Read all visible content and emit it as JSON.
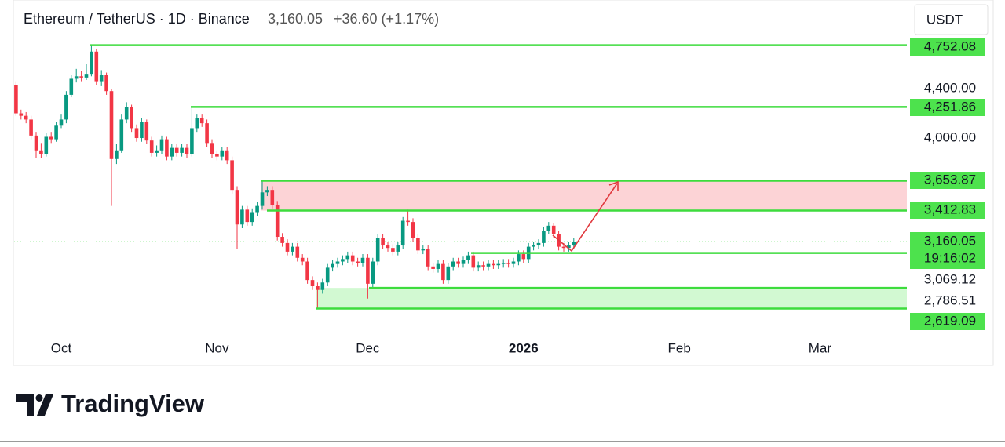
{
  "header": {
    "title": "Ethereum / TetherUS · 1D · Binance",
    "price": {
      "value": 3160.05,
      "label": "3,160.05"
    },
    "change": "+36.60 (+1.17%)",
    "currency": "USDT",
    "countdown": "19:16:02"
  },
  "brand": "TradingView",
  "chart_data": {
    "type": "candlestick",
    "up_color": "#089981",
    "down_color": "#f23645",
    "level_color": "#3ddc3d",
    "ylim": [
      2165,
      4813
    ],
    "yticks": [
      {
        "value": 4400,
        "label": "4,400.00"
      },
      {
        "value": 4000,
        "label": "4,000.00"
      }
    ],
    "levels": [
      {
        "value": 4752.08,
        "label": "4,752.08"
      },
      {
        "value": 4251.86,
        "label": "4,251.86"
      },
      {
        "value": 3653.87,
        "label": "3,653.87"
      },
      {
        "value": 3412.83,
        "label": "3,412.83"
      },
      {
        "value": 3069.12,
        "label": "3,069.12"
      },
      {
        "value": 2786.51,
        "label": "2,786.51"
      },
      {
        "value": 2619.09,
        "label": "2,619.09"
      }
    ],
    "categories": [
      null,
      null,
      null,
      null,
      null,
      null,
      null,
      null,
      null,
      "Oct",
      null,
      null,
      null,
      null,
      null,
      null,
      null,
      null,
      null,
      null,
      null,
      null,
      null,
      null,
      null,
      null,
      null,
      null,
      null,
      null,
      null,
      null,
      null,
      null,
      null,
      null,
      null,
      null,
      null,
      null,
      "Nov",
      null,
      null,
      null,
      null,
      null,
      null,
      null,
      null,
      null,
      null,
      null,
      null,
      null,
      null,
      null,
      null,
      null,
      null,
      null,
      null,
      null,
      null,
      null,
      null,
      null,
      null,
      null,
      null,
      null,
      "Dec",
      null,
      null,
      null,
      null,
      null,
      null,
      null,
      null,
      null,
      null,
      null,
      null,
      null,
      null,
      null,
      null,
      null,
      null,
      null,
      null,
      null,
      null,
      null,
      null,
      null,
      null,
      null,
      null,
      null,
      null,
      "2026",
      null,
      null,
      null,
      null,
      null,
      null,
      null,
      null,
      null,
      null,
      null,
      null,
      null,
      null,
      null,
      null,
      null,
      null,
      null,
      null,
      null,
      null,
      null,
      null,
      null,
      null,
      null,
      null,
      null,
      null,
      "Feb",
      null,
      null,
      null,
      null,
      null,
      null,
      null,
      null,
      null,
      null,
      null,
      null,
      null,
      null,
      null,
      null,
      null,
      null,
      null,
      null,
      null,
      null,
      null,
      null,
      null,
      null,
      null,
      "Mar",
      null,
      null,
      null,
      null,
      null,
      null,
      null,
      null,
      null,
      null,
      null
    ],
    "ohlc": [
      [
        4430,
        4460,
        4180,
        4200
      ],
      [
        4200,
        4230,
        4150,
        4180
      ],
      [
        4180,
        4210,
        4120,
        4150
      ],
      [
        4150,
        4180,
        3990,
        4020
      ],
      [
        4020,
        4050,
        3840,
        3900
      ],
      [
        3900,
        3960,
        3840,
        3870
      ],
      [
        3870,
        4040,
        3850,
        4010
      ],
      [
        4010,
        4050,
        3960,
        3990
      ],
      [
        3990,
        4130,
        3970,
        4100
      ],
      [
        4100,
        4190,
        4080,
        4150
      ],
      [
        4150,
        4380,
        4120,
        4350
      ],
      [
        4350,
        4510,
        4330,
        4480
      ],
      [
        4480,
        4560,
        4450,
        4500
      ],
      [
        4500,
        4540,
        4460,
        4490
      ],
      [
        4490,
        4600,
        4470,
        4520
      ],
      [
        4520,
        4752.08,
        4500,
        4700
      ],
      [
        4700,
        4720,
        4430,
        4460
      ],
      [
        4460,
        4550,
        4420,
        4510
      ],
      [
        4510,
        4530,
        4350,
        4380
      ],
      [
        4380,
        4400,
        3450,
        3830
      ],
      [
        3830,
        3950,
        3790,
        3900
      ],
      [
        3900,
        4190,
        3880,
        4150
      ],
      [
        4150,
        4290,
        4120,
        4250
      ],
      [
        4250,
        4270,
        4050,
        4080
      ],
      [
        4080,
        4110,
        3970,
        4000
      ],
      [
        4000,
        4160,
        3970,
        4130
      ],
      [
        4130,
        4150,
        3950,
        3980
      ],
      [
        3980,
        4010,
        3850,
        3880
      ],
      [
        3880,
        3940,
        3850,
        3900
      ],
      [
        3900,
        4020,
        3870,
        3990
      ],
      [
        3990,
        4010,
        3820,
        3850
      ],
      [
        3850,
        3950,
        3820,
        3920
      ],
      [
        3920,
        3950,
        3850,
        3880
      ],
      [
        3880,
        3950,
        3850,
        3920
      ],
      [
        3920,
        3950,
        3840,
        3870
      ],
      [
        3870,
        4251.86,
        3850,
        4080
      ],
      [
        4080,
        4190,
        4050,
        4160
      ],
      [
        4160,
        4190,
        4090,
        4120
      ],
      [
        4120,
        4150,
        3930,
        3960
      ],
      [
        3960,
        3990,
        3840,
        3870
      ],
      [
        3870,
        3900,
        3820,
        3850
      ],
      [
        3850,
        3930,
        3820,
        3900
      ],
      [
        3900,
        3930,
        3790,
        3820
      ],
      [
        3820,
        3850,
        3550,
        3580
      ],
      [
        3580,
        3610,
        3100,
        3300
      ],
      [
        3300,
        3450,
        3270,
        3420
      ],
      [
        3420,
        3450,
        3290,
        3320
      ],
      [
        3320,
        3430,
        3290,
        3400
      ],
      [
        3400,
        3480,
        3370,
        3450
      ],
      [
        3450,
        3653.87,
        3420,
        3560
      ],
      [
        3560,
        3610,
        3530,
        3580
      ],
      [
        3580,
        3610,
        3430,
        3460
      ],
      [
        3460,
        3490,
        3170,
        3200
      ],
      [
        3200,
        3230,
        3120,
        3150
      ],
      [
        3150,
        3180,
        3050,
        3080
      ],
      [
        3080,
        3150,
        3050,
        3120
      ],
      [
        3120,
        3150,
        3000,
        3030
      ],
      [
        3030,
        3060,
        2970,
        3000
      ],
      [
        3000,
        3030,
        2820,
        2850
      ],
      [
        2850,
        2880,
        2770,
        2800
      ],
      [
        2800,
        2830,
        2619.09,
        2770
      ],
      [
        2770,
        2860,
        2740,
        2830
      ],
      [
        2830,
        2980,
        2800,
        2950
      ],
      [
        2950,
        3010,
        2920,
        2980
      ],
      [
        2980,
        3030,
        2950,
        3000
      ],
      [
        3000,
        3050,
        2970,
        3020
      ],
      [
        3020,
        3080,
        2990,
        3050
      ],
      [
        3050,
        3080,
        2970,
        3000
      ],
      [
        3000,
        3030,
        2960,
        2990
      ],
      [
        2990,
        3060,
        2960,
        3030
      ],
      [
        3030,
        3060,
        2700,
        2820
      ],
      [
        2820,
        3030,
        2790,
        3000
      ],
      [
        3000,
        3220,
        2970,
        3190
      ],
      [
        3190,
        3220,
        3100,
        3130
      ],
      [
        3130,
        3160,
        3080,
        3110
      ],
      [
        3110,
        3140,
        3050,
        3080
      ],
      [
        3080,
        3160,
        3050,
        3130
      ],
      [
        3130,
        3360,
        3100,
        3330
      ],
      [
        3330,
        3420,
        3290,
        3320
      ],
      [
        3320,
        3350,
        3160,
        3190
      ],
      [
        3190,
        3220,
        3060,
        3090
      ],
      [
        3090,
        3130,
        3060,
        3100
      ],
      [
        3100,
        3130,
        2930,
        2960
      ],
      [
        2960,
        2990,
        2910,
        2940
      ],
      [
        2940,
        3010,
        2910,
        2980
      ],
      [
        2980,
        3010,
        2820,
        2850
      ],
      [
        2850,
        2990,
        2820,
        2960
      ],
      [
        2960,
        3030,
        2930,
        3000
      ],
      [
        3000,
        3030,
        2950,
        2980
      ],
      [
        2980,
        3040,
        2950,
        3010
      ],
      [
        3010,
        3080,
        2980,
        3050
      ],
      [
        3050,
        3080,
        2920,
        2950
      ],
      [
        2950,
        3000,
        2920,
        2970
      ],
      [
        2970,
        3000,
        2930,
        2960
      ],
      [
        2960,
        3010,
        2930,
        2980
      ],
      [
        2980,
        3010,
        2940,
        2970
      ],
      [
        2970,
        3010,
        2940,
        2980
      ],
      [
        2980,
        3020,
        2950,
        2990
      ],
      [
        2990,
        3020,
        2950,
        2980
      ],
      [
        2980,
        3030,
        2950,
        3000
      ],
      [
        3000,
        3090,
        2970,
        3060
      ],
      [
        3060,
        3090,
        2990,
        3020
      ],
      [
        3020,
        3150,
        2990,
        3120
      ],
      [
        3120,
        3160,
        3090,
        3130
      ],
      [
        3130,
        3180,
        3100,
        3150
      ],
      [
        3150,
        3280,
        3120,
        3250
      ],
      [
        3250,
        3320,
        3220,
        3290
      ],
      [
        3290,
        3310,
        3190,
        3220
      ],
      [
        3220,
        3250,
        3090,
        3120
      ],
      [
        3120,
        3150,
        3080,
        3110
      ],
      [
        3110,
        3160,
        3080,
        3130
      ],
      [
        3130,
        3190,
        3100,
        3160.05
      ],
      null,
      null,
      null,
      null,
      null,
      null,
      null,
      null,
      null,
      null,
      null,
      null,
      null,
      null,
      null,
      null,
      null,
      null,
      null,
      null,
      null,
      null,
      null,
      null,
      null,
      null,
      null,
      null,
      null,
      null,
      null,
      null,
      null,
      null,
      null,
      null,
      null,
      null,
      null,
      null,
      null,
      null,
      null,
      null,
      null,
      null,
      null,
      null,
      null,
      null,
      null,
      null,
      null,
      null,
      null,
      null,
      null,
      null,
      null,
      null
    ]
  }
}
